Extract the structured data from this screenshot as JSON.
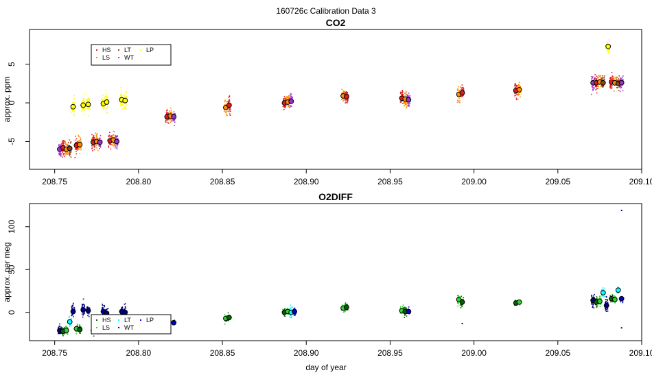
{
  "figure": {
    "title": "160726c   Calibration Data 3",
    "xlabel": "day of year"
  },
  "chart_data": [
    {
      "type": "scatter",
      "title": "CO2",
      "ylabel": "approx. ppm",
      "xlim": [
        208.735,
        209.1
      ],
      "ylim": [
        -8.6,
        9.5
      ],
      "xticks": [
        208.75,
        208.8,
        208.85,
        208.9,
        208.95,
        209.0,
        209.05,
        209.1
      ],
      "xtick_labels": [
        "208.75",
        "208.80",
        "208.85",
        "208.90",
        "208.95",
        "209.00",
        "209.05",
        "209.10"
      ],
      "yticks": [
        -5,
        0,
        5
      ],
      "ytick_labels": [
        "-5",
        "0",
        "5"
      ],
      "legend": {
        "position": "top-left",
        "entries": [
          {
            "name": "HS",
            "color": "#e31a1c"
          },
          {
            "name": "LS",
            "color": "#ff8c00"
          },
          {
            "name": "LT",
            "color": "#8b4513"
          },
          {
            "name": "WT",
            "color": "#9932cc"
          },
          {
            "name": "LP",
            "color": "#ffff00"
          }
        ]
      },
      "clusters": [
        {
          "x": 208.753,
          "y": -6.0,
          "color": "#9932cc",
          "spread": 1.0
        },
        {
          "x": 208.755,
          "y": -5.8,
          "color": "#e31a1c",
          "spread": 1.0
        },
        {
          "x": 208.757,
          "y": -6.0,
          "color": "#ff8c00",
          "spread": 1.0
        },
        {
          "x": 208.759,
          "y": -5.9,
          "color": "#8b4513",
          "spread": 1.0
        },
        {
          "x": 208.761,
          "y": -0.5,
          "color": "#ffff00",
          "spread": 1.0
        },
        {
          "x": 208.763,
          "y": -5.5,
          "color": "#e31a1c",
          "spread": 0.9
        },
        {
          "x": 208.765,
          "y": -5.4,
          "color": "#ff8c00",
          "spread": 0.9
        },
        {
          "x": 208.767,
          "y": -0.3,
          "color": "#ffff00",
          "spread": 1.0
        },
        {
          "x": 208.77,
          "y": -0.2,
          "color": "#ffff00",
          "spread": 1.0
        },
        {
          "x": 208.773,
          "y": -5.1,
          "color": "#e31a1c",
          "spread": 0.9
        },
        {
          "x": 208.775,
          "y": -5.0,
          "color": "#ff8c00",
          "spread": 0.9
        },
        {
          "x": 208.777,
          "y": -5.1,
          "color": "#9932cc",
          "spread": 0.9
        },
        {
          "x": 208.779,
          "y": -0.1,
          "color": "#ffff00",
          "spread": 1.0
        },
        {
          "x": 208.781,
          "y": 0.1,
          "color": "#ffff00",
          "spread": 1.0
        },
        {
          "x": 208.783,
          "y": -4.9,
          "color": "#e31a1c",
          "spread": 0.9
        },
        {
          "x": 208.785,
          "y": -4.8,
          "color": "#ff8c00",
          "spread": 0.9
        },
        {
          "x": 208.787,
          "y": -5.0,
          "color": "#9932cc",
          "spread": 0.9
        },
        {
          "x": 208.79,
          "y": 0.4,
          "color": "#ffff00",
          "spread": 1.0
        },
        {
          "x": 208.792,
          "y": 0.3,
          "color": "#ffff00",
          "spread": 1.0
        },
        {
          "x": 208.817,
          "y": -1.8,
          "color": "#e31a1c",
          "spread": 0.8
        },
        {
          "x": 208.819,
          "y": -1.7,
          "color": "#ff8c00",
          "spread": 0.8
        },
        {
          "x": 208.821,
          "y": -1.8,
          "color": "#9932cc",
          "spread": 0.8
        },
        {
          "x": 208.852,
          "y": -0.6,
          "color": "#ff8c00",
          "spread": 1.0
        },
        {
          "x": 208.854,
          "y": -0.3,
          "color": "#e31a1c",
          "spread": 1.0
        },
        {
          "x": 208.887,
          "y": 0.0,
          "color": "#e31a1c",
          "spread": 0.9
        },
        {
          "x": 208.889,
          "y": 0.1,
          "color": "#ff8c00",
          "spread": 0.9
        },
        {
          "x": 208.891,
          "y": 0.2,
          "color": "#9932cc",
          "spread": 0.9
        },
        {
          "x": 208.922,
          "y": 0.9,
          "color": "#ff8c00",
          "spread": 0.8
        },
        {
          "x": 208.924,
          "y": 0.8,
          "color": "#e31a1c",
          "spread": 0.8
        },
        {
          "x": 208.957,
          "y": 0.6,
          "color": "#e31a1c",
          "spread": 0.9
        },
        {
          "x": 208.959,
          "y": 0.5,
          "color": "#ff8c00",
          "spread": 0.9
        },
        {
          "x": 208.961,
          "y": 0.4,
          "color": "#9932cc",
          "spread": 0.9
        },
        {
          "x": 208.991,
          "y": 1.1,
          "color": "#ff8c00",
          "spread": 0.9
        },
        {
          "x": 208.993,
          "y": 1.3,
          "color": "#e31a1c",
          "spread": 0.9
        },
        {
          "x": 209.025,
          "y": 1.6,
          "color": "#e31a1c",
          "spread": 0.9
        },
        {
          "x": 209.027,
          "y": 1.7,
          "color": "#ff8c00",
          "spread": 0.9
        },
        {
          "x": 209.071,
          "y": 2.6,
          "color": "#9932cc",
          "spread": 0.9
        },
        {
          "x": 209.073,
          "y": 2.6,
          "color": "#e31a1c",
          "spread": 0.9
        },
        {
          "x": 209.075,
          "y": 2.7,
          "color": "#ff8c00",
          "spread": 0.9
        },
        {
          "x": 209.077,
          "y": 2.6,
          "color": "#8b4513",
          "spread": 0.9
        },
        {
          "x": 209.08,
          "y": 7.3,
          "color": "#ffff00",
          "spread": 0.7
        },
        {
          "x": 209.082,
          "y": 2.7,
          "color": "#e31a1c",
          "spread": 0.9
        },
        {
          "x": 209.084,
          "y": 2.6,
          "color": "#ff8c00",
          "spread": 0.9
        },
        {
          "x": 209.086,
          "y": 2.5,
          "color": "#8b4513",
          "spread": 0.9
        },
        {
          "x": 209.088,
          "y": 2.6,
          "color": "#9932cc",
          "spread": 0.9
        }
      ]
    },
    {
      "type": "scatter",
      "title": "O2DIFF",
      "ylabel": "approx. per meg",
      "xlim": [
        208.735,
        209.1
      ],
      "ylim": [
        -33,
        127
      ],
      "xticks": [
        208.75,
        208.8,
        208.85,
        208.9,
        208.95,
        209.0,
        209.05,
        209.1
      ],
      "xtick_labels": [
        "208.75",
        "208.80",
        "208.85",
        "208.90",
        "208.95",
        "209.00",
        "209.05",
        "209.10"
      ],
      "yticks": [
        0,
        50,
        100
      ],
      "ytick_labels": [
        "0",
        "50",
        "100"
      ],
      "legend": {
        "position": "bottom-left",
        "entries": [
          {
            "name": "HS",
            "color": "#006400"
          },
          {
            "name": "LS",
            "color": "#32cd32"
          },
          {
            "name": "LT",
            "color": "#00ffff"
          },
          {
            "name": "WT",
            "color": "#000080"
          },
          {
            "name": "LP",
            "color": "#0000cd"
          }
        ]
      },
      "clusters": [
        {
          "x": 208.753,
          "y": -21,
          "color": "#000080",
          "spread": 6
        },
        {
          "x": 208.755,
          "y": -22,
          "color": "#006400",
          "spread": 5
        },
        {
          "x": 208.757,
          "y": -21,
          "color": "#32cd32",
          "spread": 5
        },
        {
          "x": 208.759,
          "y": -11,
          "color": "#00ffff",
          "spread": 6
        },
        {
          "x": 208.761,
          "y": 1,
          "color": "#000080",
          "spread": 8
        },
        {
          "x": 208.763,
          "y": -19,
          "color": "#32cd32",
          "spread": 4
        },
        {
          "x": 208.765,
          "y": -20,
          "color": "#006400",
          "spread": 4
        },
        {
          "x": 208.767,
          "y": 3,
          "color": "#000080",
          "spread": 8
        },
        {
          "x": 208.77,
          "y": 2,
          "color": "#000080",
          "spread": 8
        },
        {
          "x": 208.773,
          "y": -21,
          "color": "#006400",
          "spread": 4
        },
        {
          "x": 208.779,
          "y": 1,
          "color": "#000080",
          "spread": 8
        },
        {
          "x": 208.781,
          "y": -1,
          "color": "#000080",
          "spread": 8
        },
        {
          "x": 208.79,
          "y": 1,
          "color": "#000080",
          "spread": 8
        },
        {
          "x": 208.792,
          "y": 0,
          "color": "#000080",
          "spread": 8
        },
        {
          "x": 208.821,
          "y": -12,
          "color": "#0000cd",
          "spread": 2
        },
        {
          "x": 208.852,
          "y": -7,
          "color": "#32cd32",
          "spread": 4
        },
        {
          "x": 208.854,
          "y": -6,
          "color": "#006400",
          "spread": 4
        },
        {
          "x": 208.887,
          "y": 0,
          "color": "#006400",
          "spread": 4
        },
        {
          "x": 208.889,
          "y": 1,
          "color": "#32cd32",
          "spread": 4
        },
        {
          "x": 208.891,
          "y": 0,
          "color": "#00ffff",
          "spread": 8
        },
        {
          "x": 208.893,
          "y": 1,
          "color": "#0000cd",
          "spread": 3
        },
        {
          "x": 208.922,
          "y": 5,
          "color": "#32cd32",
          "spread": 4
        },
        {
          "x": 208.924,
          "y": 6,
          "color": "#006400",
          "spread": 4
        },
        {
          "x": 208.957,
          "y": 2,
          "color": "#32cd32",
          "spread": 5
        },
        {
          "x": 208.959,
          "y": 1,
          "color": "#006400",
          "spread": 5
        },
        {
          "x": 208.961,
          "y": 1,
          "color": "#0000cd",
          "spread": 3
        },
        {
          "x": 208.991,
          "y": 15,
          "color": "#32cd32",
          "spread": 6
        },
        {
          "x": 208.993,
          "y": 12,
          "color": "#006400",
          "spread": 6
        },
        {
          "x": 209.025,
          "y": 11,
          "color": "#006400",
          "spread": 3
        },
        {
          "x": 209.027,
          "y": 12,
          "color": "#32cd32",
          "spread": 3
        },
        {
          "x": 209.071,
          "y": 14,
          "color": "#000080",
          "spread": 8
        },
        {
          "x": 209.073,
          "y": 12,
          "color": "#006400",
          "spread": 5
        },
        {
          "x": 209.075,
          "y": 13,
          "color": "#32cd32",
          "spread": 5
        },
        {
          "x": 209.077,
          "y": 23,
          "color": "#00ffff",
          "spread": 5
        },
        {
          "x": 209.079,
          "y": 8,
          "color": "#000080",
          "spread": 9
        },
        {
          "x": 209.082,
          "y": 16,
          "color": "#006400",
          "spread": 4
        },
        {
          "x": 209.084,
          "y": 15,
          "color": "#32cd32",
          "spread": 4
        },
        {
          "x": 209.086,
          "y": 26,
          "color": "#00ffff",
          "spread": 4
        },
        {
          "x": 209.088,
          "y": 16,
          "color": "#0000cd",
          "spread": 3
        }
      ],
      "outliers": [
        {
          "x": 209.088,
          "y": 119
        },
        {
          "x": 209.088,
          "y": -18
        },
        {
          "x": 208.993,
          "y": -13
        }
      ]
    }
  ]
}
